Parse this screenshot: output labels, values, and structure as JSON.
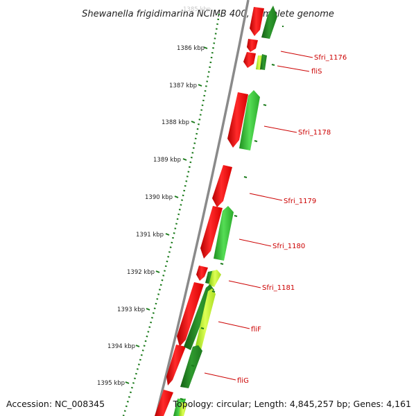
{
  "title": "Shewanella frigidimarina NCIMB 400, complete genome",
  "footer": {
    "accession": "Accession: NC_008345",
    "topology": "Topology: circular; Length: 4,845,257 bp; Genes: 4,161"
  },
  "ruler": {
    "top_faded_label": "1385 kbp",
    "labels": [
      "1386 kbp",
      "1387 kbp",
      "1388 kbp",
      "1389 kbp",
      "1390 kbp",
      "1391 kbp",
      "1392 kbp",
      "1393 kbp",
      "1394 kbp",
      "1395 kbp"
    ]
  },
  "gene_labels": [
    "Sfri_1176",
    "fliS",
    "Sfri_1178",
    "Sfri_1179",
    "Sfri_1180",
    "Sfri_1181",
    "fliF",
    "fliG"
  ],
  "colors": {
    "reverse_strand": "#ee1111",
    "forward_strand": "#33bb33",
    "forward_dark": "#228822",
    "forward_light": "#99dd22",
    "label_red": "#cc0000",
    "tick_green": "#1a7a1a",
    "backbone": "#888888"
  }
}
